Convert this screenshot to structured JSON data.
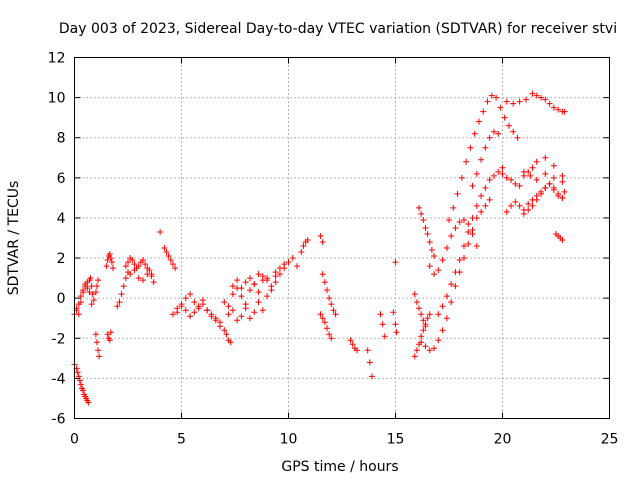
{
  "chart_data": {
    "type": "scatter",
    "title": "Day 003 of 2023, Sidereal Day-to-day VTEC variation (SDTVAR) for receiver stvi",
    "xlabel": "GPS time / hours",
    "ylabel": "SDTVAR / TECUs",
    "xlim": [
      0,
      25
    ],
    "ylim": [
      -6,
      12
    ],
    "xticks": [
      0,
      5,
      10,
      15,
      20,
      25
    ],
    "yticks": [
      -6,
      -4,
      -2,
      0,
      2,
      4,
      6,
      8,
      10,
      12
    ],
    "grid": true,
    "marker": "plus",
    "color": "#ff0000",
    "series": [
      {
        "name": "SDTVAR",
        "x": [
          0.0,
          0.1,
          0.15,
          0.2,
          0.25,
          0.3,
          0.35,
          0.4,
          0.45,
          0.5,
          0.55,
          0.6,
          0.65,
          0.1,
          0.2,
          0.3,
          0.4,
          0.5,
          0.6,
          0.7,
          0.75,
          0.8,
          0.85,
          0.0,
          0.1,
          0.2,
          0.3,
          0.4,
          0.5,
          0.6,
          0.7,
          0.8,
          0.9,
          1.0,
          1.05,
          1.1,
          1.0,
          1.05,
          1.1,
          1.15,
          1.5,
          1.55,
          1.6,
          1.65,
          1.7,
          1.75,
          1.8,
          1.55,
          1.6,
          1.65,
          1.7,
          2.0,
          2.1,
          2.2,
          2.3,
          2.4,
          2.5,
          2.4,
          2.5,
          2.6,
          2.7,
          2.8,
          2.9,
          3.0,
          3.1,
          3.2,
          3.3,
          3.4,
          3.5,
          3.6,
          2.6,
          2.8,
          3.0,
          3.2,
          3.4,
          3.6,
          3.7,
          4.0,
          4.2,
          4.3,
          4.4,
          4.5,
          4.6,
          4.7,
          4.6,
          4.8,
          5.0,
          5.2,
          5.4,
          5.6,
          5.8,
          6.0,
          6.2,
          6.4,
          6.6,
          6.8,
          4.8,
          5.0,
          5.2,
          5.4,
          5.6,
          5.8,
          6.0,
          6.2,
          6.4,
          6.6,
          6.8,
          7.0,
          7.1,
          7.2,
          7.3,
          7.0,
          7.2,
          7.4,
          7.6,
          7.8,
          8.0,
          8.2,
          8.4,
          8.6,
          8.8,
          9.0,
          9.2,
          9.4,
          9.6,
          9.8,
          7.2,
          7.4,
          7.6,
          7.8,
          8.0,
          8.2,
          8.4,
          8.6,
          8.8,
          9.0,
          9.2,
          9.4,
          7.4,
          7.6,
          7.8,
          8.0,
          8.2,
          8.4,
          8.6,
          8.8,
          9.0,
          9.4,
          9.6,
          9.8,
          10.0,
          10.2,
          10.4,
          10.6,
          10.7,
          10.8,
          10.9,
          11.5,
          11.6,
          11.6,
          11.7,
          11.8,
          11.9,
          12.0,
          12.1,
          12.2,
          11.5,
          11.6,
          11.7,
          11.8,
          11.9,
          12.0,
          12.9,
          13.0,
          13.1,
          13.2,
          13.7,
          13.8,
          13.9,
          14.3,
          14.4,
          14.5,
          14.9,
          15.0,
          15.05,
          15.0,
          15.9,
          16.0,
          16.1,
          16.2,
          16.3,
          16.4,
          16.5,
          16.6,
          15.9,
          16.0,
          16.1,
          16.2,
          16.3,
          16.4,
          16.1,
          16.2,
          16.3,
          16.4,
          16.5,
          16.6,
          16.7,
          16.8,
          16.6,
          16.8,
          17.0,
          17.2,
          17.4,
          17.6,
          17.8,
          18.0,
          18.2,
          18.4,
          18.6,
          18.8,
          16.2,
          16.4,
          16.6,
          16.8,
          17.0,
          17.2,
          17.4,
          17.6,
          17.8,
          18.0,
          18.2,
          18.4,
          18.6,
          18.8,
          19.0,
          19.2,
          19.4,
          17.0,
          17.2,
          17.4,
          17.6,
          17.8,
          18.0,
          18.2,
          18.4,
          18.6,
          18.8,
          19.0,
          19.2,
          19.4,
          19.6,
          19.8,
          20.0,
          17.5,
          17.7,
          17.9,
          18.1,
          18.3,
          18.5,
          18.7,
          18.9,
          19.1,
          19.3,
          19.5,
          19.7,
          19.9,
          20.1,
          20.3,
          20.5,
          20.7,
          21.0,
          21.3,
          21.6,
          22.0,
          22.4,
          22.8,
          18.6,
          18.8,
          19.0,
          19.2,
          19.4,
          19.6,
          19.8,
          20.0,
          20.2,
          20.4,
          20.6,
          20.8,
          21.0,
          21.2,
          21.4,
          21.6,
          22.0,
          22.4,
          22.8,
          20.2,
          20.4,
          20.6,
          20.8,
          21.0,
          21.2,
          21.4,
          21.6,
          21.8,
          22.0,
          22.2,
          22.4,
          22.6,
          22.8,
          21.0,
          21.2,
          21.4,
          21.6,
          21.8,
          22.0,
          22.2,
          22.4,
          22.6,
          22.8,
          22.9,
          20.2,
          20.5,
          20.8,
          21.1,
          21.4,
          21.6,
          21.8,
          22.0,
          22.2,
          22.4,
          22.6,
          22.8,
          22.9,
          22.5,
          22.6,
          22.7,
          22.8
        ],
        "y": [
          -3.3,
          -3.5,
          -3.7,
          -3.9,
          -4.1,
          -4.3,
          -4.5,
          -4.6,
          -4.8,
          -4.9,
          -5.0,
          -5.1,
          -5.2,
          -0.5,
          -0.8,
          -0.2,
          0.3,
          0.7,
          0.8,
          0.9,
          1.0,
          0.6,
          0.2,
          -0.8,
          -0.6,
          -0.3,
          0.1,
          0.4,
          0.6,
          0.5,
          0.3,
          -0.3,
          -0.1,
          0.3,
          0.6,
          0.9,
          -1.8,
          -2.2,
          -2.6,
          -2.9,
          1.6,
          1.9,
          2.1,
          2.2,
          2.0,
          1.8,
          1.5,
          -1.8,
          -2.0,
          -2.1,
          -1.7,
          -0.4,
          -0.2,
          0.2,
          0.6,
          1.0,
          1.3,
          1.6,
          1.8,
          2.0,
          1.9,
          1.7,
          1.5,
          1.6,
          1.8,
          1.9,
          1.7,
          1.5,
          1.4,
          1.2,
          1.2,
          1.4,
          1.0,
          0.9,
          1.2,
          1.1,
          0.8,
          3.3,
          2.5,
          2.3,
          2.1,
          1.9,
          1.7,
          1.5,
          -0.8,
          -0.5,
          -0.3,
          0.0,
          0.2,
          -0.2,
          -0.4,
          -0.1,
          -0.6,
          -0.8,
          -1.0,
          -1.2,
          -0.7,
          -0.4,
          -0.6,
          -0.9,
          -0.7,
          -0.5,
          -0.3,
          -0.6,
          -0.9,
          -1.1,
          -1.4,
          -1.6,
          -1.8,
          -2.1,
          -2.2,
          -0.2,
          -0.4,
          0.2,
          0.5,
          0.1,
          -0.3,
          0.4,
          0.7,
          0.3,
          0.9,
          1.0,
          0.6,
          1.1,
          1.2,
          1.5,
          -0.8,
          -0.6,
          -1.1,
          -0.9,
          -0.5,
          -1.0,
          -0.7,
          -0.2,
          -0.6,
          0.1,
          0.4,
          0.8,
          0.6,
          0.9,
          0.5,
          0.8,
          1.0,
          0.7,
          1.2,
          1.1,
          0.9,
          1.3,
          1.5,
          1.7,
          1.8,
          2.0,
          1.6,
          2.3,
          2.6,
          2.8,
          2.9,
          3.1,
          2.8,
          1.2,
          0.8,
          0.4,
          0.0,
          -0.3,
          -0.6,
          -0.8,
          -0.8,
          -1.0,
          -1.2,
          -1.5,
          -1.8,
          -2.0,
          -2.1,
          -2.3,
          -2.5,
          -2.6,
          -2.6,
          -3.2,
          -3.9,
          -0.8,
          -1.3,
          -1.9,
          -0.7,
          -1.3,
          -1.7,
          1.8,
          -2.9,
          -2.6,
          -2.3,
          -1.9,
          -1.6,
          -1.3,
          -1.0,
          -0.8,
          0.2,
          -0.2,
          -0.5,
          -0.8,
          -1.1,
          -1.4,
          4.5,
          4.2,
          3.9,
          3.5,
          3.2,
          2.8,
          2.4,
          2.1,
          1.6,
          1.2,
          1.4,
          1.9,
          2.5,
          3.1,
          3.5,
          3.8,
          3.9,
          3.7,
          3.2,
          2.6,
          -2.2,
          -2.4,
          -2.6,
          -2.5,
          -2.1,
          -1.6,
          -1.0,
          -0.2,
          0.6,
          1.3,
          2.0,
          2.7,
          3.4,
          4.0,
          4.3,
          4.6,
          4.9,
          -0.8,
          -0.4,
          0.1,
          0.7,
          1.3,
          1.9,
          2.6,
          3.3,
          4.0,
          4.6,
          5.1,
          5.5,
          5.9,
          6.1,
          6.3,
          6.5,
          3.9,
          4.5,
          5.2,
          6.0,
          6.8,
          7.5,
          8.2,
          8.8,
          9.3,
          9.8,
          10.1,
          10.0,
          9.5,
          9.0,
          8.6,
          8.3,
          8.0,
          6.3,
          6.1,
          5.9,
          6.2,
          6.0,
          5.8,
          5.6,
          6.2,
          6.9,
          7.5,
          8.0,
          8.3,
          8.2,
          6.2,
          6.0,
          5.9,
          5.7,
          5.6,
          6.1,
          6.3,
          6.5,
          6.8,
          7.0,
          6.6,
          6.1,
          4.3,
          4.6,
          4.8,
          4.6,
          4.4,
          4.7,
          4.9,
          5.1,
          5.3,
          5.5,
          5.7,
          5.5,
          5.2,
          5.0,
          4.2,
          4.4,
          4.6,
          4.9,
          5.2,
          5.5,
          5.7,
          5.4,
          5.1,
          5.0,
          5.3,
          9.8,
          9.7,
          9.8,
          9.9,
          10.2,
          10.1,
          10.0,
          9.9,
          9.7,
          9.5,
          9.4,
          9.3,
          9.3,
          3.2,
          3.1,
          3.0,
          2.9
        ]
      }
    ]
  }
}
